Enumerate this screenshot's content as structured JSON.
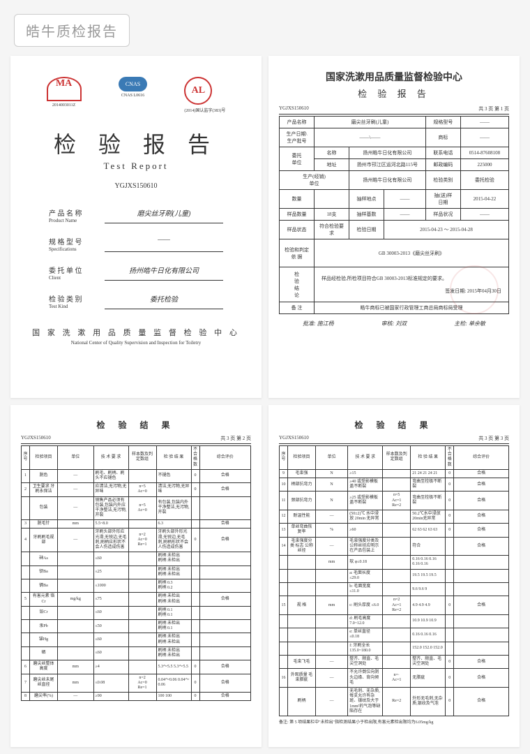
{
  "header": {
    "badge": "皓牛质检报告"
  },
  "cover": {
    "logos": {
      "ma": "MA",
      "ma_sub": "2014003011Z",
      "cnas": "CNAS",
      "cnas_sub": "CNAS L0616",
      "al": "AL",
      "al_sub": "(2014)国认监字(383)号"
    },
    "title": "检 验 报 告",
    "title_en": "Test  Report",
    "code": "YGJXS150610",
    "fields": [
      {
        "label": "产 品 名 称",
        "label_en": "Product Name",
        "value": "磨尖丝牙刷(儿童)"
      },
      {
        "label": "规 格 型 号",
        "label_en": "Specifications",
        "value": "——"
      },
      {
        "label": "委 托 单 位",
        "label_en": "Client",
        "value": "扬州皓牛日化有限公司"
      },
      {
        "label": "检 验 类 别",
        "label_en": "Test Kind",
        "value": "委托检验"
      }
    ],
    "footer": "国 家 洗 漱 用 品 质 量 监 督 检 验 中 心",
    "footer_en": "National Center of Quality Supervision and Inspection for Toiletry"
  },
  "summary": {
    "title": "国家洗漱用品质量监督检验中心",
    "subtitle": "检 验 报 告",
    "code": "YGJXS150610",
    "page": "共 3 页 第 1 页",
    "rows": [
      [
        {
          "l": "产品名称",
          "v": "磨尖丝牙刷(儿童)",
          "c": 3
        },
        {
          "l": "规格型号",
          "v": "——"
        }
      ],
      [
        {
          "l": "生产日期\\\n生产批号",
          "v": "——\\——",
          "c": 3
        },
        {
          "l": "商标",
          "v": "——"
        }
      ],
      [
        {
          "l": "委托\n单位",
          "l2": "名称",
          "v": "扬州皓牛日化有限公司",
          "c": 2
        },
        {
          "l": "联系电话",
          "v": "0514-87608108"
        }
      ],
      [
        {
          "l2": "地址",
          "v": "扬州市邗江区运河北路115号",
          "c": 2
        },
        {
          "l": "邮政编码",
          "v": "225000"
        }
      ],
      [
        {
          "l": "生产(经销)\n单位",
          "v": "扬州皓牛日化有限公司",
          "c": 3
        },
        {
          "l": "检验类别",
          "v": "委托检验"
        }
      ],
      [
        {
          "l": "数量",
          "v": ""
        },
        {
          "l": "抽样地点",
          "v": "——"
        },
        {
          "l": "抽(送)样\n日期",
          "v": "2015-04-22"
        }
      ],
      [
        {
          "l": "样品数量",
          "v": "18支"
        },
        {
          "l": "抽样基数",
          "v": "——"
        },
        {
          "l": "样品状况",
          "v": "——"
        }
      ],
      [
        {
          "l": "样品状态",
          "v": "符合检验要求"
        },
        {
          "l": "检验日期",
          "v": "2015-04-23  ～  2015-04-28",
          "c": 3
        }
      ]
    ],
    "basis_label": "检验和判定\n依    据",
    "basis": "GB 30003-2013《磨尖丝牙刷》",
    "conclusion_label": "检\n验\n结\n论",
    "conclusion": "样品经检验,所检项目符合GB 30003-2013标准规定的要求。",
    "issue_date_label": "签发日期:",
    "issue_date": "2015年04月30日",
    "remark_label": "备  注",
    "remark": "皓牛商标已被国家行政管理工商总局商标局受理",
    "sigs": [
      "批准: 施江杨",
      "审核: 刘双",
      "主检: 单余敏"
    ]
  },
  "results_a": {
    "title": "检  验  结  果",
    "code": "YGJXS150610",
    "page": "共 3 页 第 2 页",
    "cols": [
      "序号",
      "检验项目",
      "单位",
      "技  术  要  求",
      "样本数及判定数组",
      "检  验  结  果",
      "不合格数",
      "综合评价"
    ],
    "rows": [
      {
        "n": "1",
        "item": "脱色",
        "u": "—",
        "req": "刷毛、刷柄、刷头不应褪色",
        "s": "",
        "res": "不褪色",
        "f": "0",
        "r": "合格"
      },
      {
        "n": "2",
        "item": "卫生要求 牙刷永保洁",
        "u": "—",
        "req": "应清洁,无污物,无异味",
        "s": "n=5\nAc=0",
        "res": "清洁,无污物,无异味",
        "f": "0",
        "r": "合格"
      },
      {
        "n": "",
        "item": "包装",
        "u": "—",
        "req": "销售产品必须有包装,包装内外应干净整洁,无污物,开裂",
        "s": "n=5\nAc=0",
        "res": "有包装,包装内外干净整洁,无污物,开裂",
        "f": "",
        "r": ""
      },
      {
        "n": "3",
        "item": "脱毛针",
        "u": "mm",
        "req": "5.5~8.0",
        "s": "",
        "res": "6.3",
        "f": "",
        "r": "合格"
      },
      {
        "n": "4",
        "item": "牙刷刷毛规部",
        "u": "—",
        "req": "牙刷头部外形应光滑,无锐边,无毛刺,刷柄应形状不会人伤造成伤害",
        "s": "n=2\nAc=0\nRe=1",
        "res": "牙刷头部外形光滑,无锐边,无毛刺,刷柄形状不会人伤造成伤害",
        "f": "0",
        "r": "合格"
      },
      {
        "n": "",
        "item": "砷As",
        "u": "",
        "req": "≤60",
        "s": "",
        "res": "刷柄   未检出\n刷柄   未检出",
        "f": "",
        "r": ""
      },
      {
        "n": "",
        "item": "钡Ba",
        "u": "",
        "req": "≤25",
        "s": "",
        "res": "刷柄   未检出\n刷柄   未检出",
        "f": "",
        "r": ""
      },
      {
        "n": "",
        "item": "镉Ba",
        "u": "",
        "req": "≤1000",
        "s": "",
        "res": "刷柄   0.3\n刷柄   0.2",
        "f": "",
        "r": ""
      },
      {
        "n": "5",
        "item": "有害元素   铬Cr",
        "u": "mg/kg",
        "req": "≤75",
        "s": "",
        "res": "刷柄   未检出\n刷柄   未检出",
        "f": "",
        "r": "合格"
      },
      {
        "n": "",
        "item": "铅Cr",
        "u": "",
        "req": "≤60",
        "s": "",
        "res": "刷柄   0.1\n刷柄   0.1",
        "f": "",
        "r": ""
      },
      {
        "n": "",
        "item": "汞Pb",
        "u": "",
        "req": "≤50",
        "s": "",
        "res": "刷柄   未检出\n刷柄   0.1",
        "f": "",
        "r": ""
      },
      {
        "n": "",
        "item": "锑Hg",
        "u": "",
        "req": "≤60",
        "s": "",
        "res": "刷柄   未检出\n刷柄   未检出",
        "f": "",
        "r": ""
      },
      {
        "n": "",
        "item": "硒",
        "u": "",
        "req": "≤60",
        "s": "",
        "res": "刷柄   未检出\n刷柄   未检出",
        "f": "",
        "r": ""
      },
      {
        "n": "6",
        "item": "磨尖丝整体高度",
        "u": "mm",
        "req": "≥4",
        "s": "",
        "res": "5.3～5.5    5.3～5.5",
        "f": "0",
        "r": "合格"
      },
      {
        "n": "7",
        "item": "磨尖丝未尾丝直径",
        "u": "mm",
        "req": "≤0.08",
        "s": "n=2\nAc=0\nRe=1",
        "res": "0.04～0.06  0.04～0.06",
        "f": "0",
        "r": "合格"
      },
      {
        "n": "8",
        "item": "磨尖率(%)",
        "u": "—",
        "req": "≥90",
        "s": "",
        "res": "100         100",
        "f": "0",
        "r": "合格"
      }
    ]
  },
  "results_b": {
    "title": "检  验  结  果",
    "code": "YGJXS150610",
    "page": "共 3 页 第 3 页",
    "cols": [
      "序号",
      "检验项目",
      "单位",
      "技  术  要  求",
      "样本数及判定数组",
      "检  验  结  果",
      "不合格数",
      "综合评价"
    ],
    "rows": [
      {
        "n": "9",
        "item": "毛束强",
        "u": "N",
        "req": "≥15",
        "s": "",
        "res": "21  24  21  24  21",
        "f": "0",
        "r": "合格"
      },
      {
        "n": "10",
        "item": "柄部抗弯力",
        "u": "N",
        "req": "≥40 或受影模板盖不断裂",
        "s": "",
        "res": "弯曲至栓极不断裂",
        "f": "0",
        "r": "合格"
      },
      {
        "n": "11",
        "item": "颈部抗弯力",
        "u": "N",
        "req": "≥25 或受影模板盖不断裂",
        "s": "n=5\nAc=1\nRe=2",
        "res": "弯曲至栓极不断裂",
        "f": "0",
        "r": "合格"
      },
      {
        "n": "12",
        "item": "耐温性能",
        "u": "—",
        "req": "(50±2)℃ 水中浸放 20min 无异常",
        "s": "",
        "res": "50.2℃水中浸放20min无异常",
        "f": "0",
        "r": "合格"
      },
      {
        "n": "13",
        "item": "单丝弯曲恢复率",
        "u": "%",
        "req": "≥60",
        "s": "",
        "res": "62  63  62  63  63",
        "f": "0",
        "r": "合格"
      },
      {
        "n": "14",
        "item": "毛束强度分类  标志  公称丝径",
        "u": "—",
        "req": "毛束强度分类及公称丝径应明示在产品包装上",
        "s": "",
        "res": "符合",
        "f": "",
        "r": "合格"
      },
      {
        "n": "",
        "item": "",
        "u": "mm",
        "req": "软    φ≤0.18",
        "s": "",
        "res": "0.16 0.16 0.16 0.16 0.16",
        "f": "",
        "r": ""
      },
      {
        "n": "",
        "item": "",
        "u": "",
        "req": "a: 毛面长度 ≤29.0",
        "s": "",
        "res": "19.5  19.5  19.5",
        "f": "",
        "r": ""
      },
      {
        "n": "",
        "item": "",
        "u": "",
        "req": "b: 毛面宽度 ≤11.0",
        "s": "",
        "res": "9.6   9.6   9",
        "f": "",
        "r": ""
      },
      {
        "n": "15",
        "item": "规  格",
        "u": "mm",
        "req": "c: 刷头厚度 ≤6.0",
        "s": "n=2\nAc=1\nRe=2",
        "res": "4.9   4.9   4.9",
        "f": "0",
        "r": "合格"
      },
      {
        "n": "",
        "item": "",
        "u": "",
        "req": "d: 刷毛高度 7.0~12.0",
        "s": "",
        "res": "10.9  10.9  10.9",
        "f": "",
        "r": ""
      },
      {
        "n": "",
        "item": "",
        "u": "",
        "req": "e: 单丝直径 ≤0.18",
        "s": "",
        "res": "0.16  0.16  0.16",
        "f": "",
        "r": ""
      },
      {
        "n": "",
        "item": "",
        "u": "",
        "req": "f: 牙刷全长 135.0~180.0",
        "s": "",
        "res": "152.0 152.0 152.0",
        "f": "",
        "r": ""
      },
      {
        "n": "",
        "item": "毛束飞毛",
        "u": "—",
        "req": "整齐、顺直、毛尖空洞处",
        "s": "",
        "res": "整齐、顺直、毛尖空洞处",
        "f": "0",
        "r": "合格"
      },
      {
        "n": "16",
        "item": "外观质量  毛束腊疵",
        "u": "—",
        "req": "不允许倒位向剥头边缘、背向倾毛",
        "s": "n=·\nAc=1",
        "res": "无腊疵",
        "f": "0",
        "r": "合格"
      },
      {
        "n": "",
        "item": "刷柄",
        "u": "—",
        "req": "无毛刺、无杂质,每支允许有杂斑、银纹及大于 1mm²的气泡等缺陷存在",
        "s": "Re=2",
        "res": "外形无毛刺,无杂质,银纹及气泡",
        "f": "0",
        "r": "合格"
      }
    ],
    "note": "备注:  第 5 项结果栏中\"未检出\"指检测结果小于检出限,有害元素检出限均为6.05mg/kg"
  }
}
